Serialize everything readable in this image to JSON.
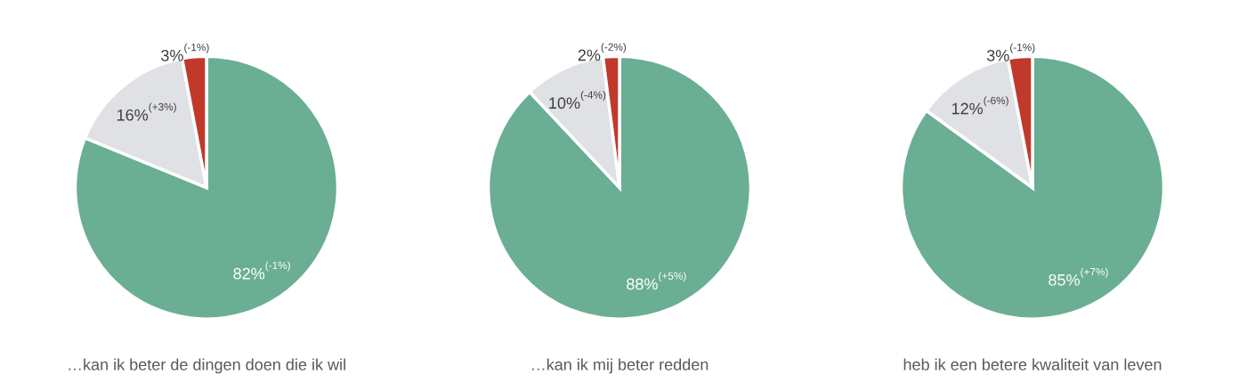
{
  "chart_data": [
    {
      "type": "pie",
      "title": "…kan ik beter de dingen doen die ik wil",
      "categories": [
        null,
        null,
        null
      ],
      "values": [
        82,
        16,
        3
      ],
      "colors": [
        "#6aae94",
        "#dfe1e4",
        "#c0392b"
      ],
      "value_labels": [
        "82%$^{(-1%)}$",
        "16%$^{(+3%)}$",
        "3%$^{(-1%)}$"
      ]
    },
    {
      "type": "pie",
      "title": "…kan ik mij beter redden",
      "categories": [
        null,
        null,
        null
      ],
      "values": [
        88,
        10,
        2
      ],
      "colors": [
        "#6aae94",
        "#dfe1e4",
        "#c0392b"
      ],
      "value_labels": [
        "88%$^{(+5%)}$",
        "10%$^{(-4%)}$",
        "2%$^{(-2%)}$"
      ]
    },
    {
      "type": "pie",
      "title": "heb ik een betere kwaliteit van leven",
      "categories": [
        null,
        null,
        null
      ],
      "values": [
        85,
        12,
        3
      ],
      "colors": [
        "#6aae94",
        "#dfe1e4",
        "#c0392b"
      ],
      "value_labels": [
        "85%$^{(+7%)}$",
        "12%$^{(-6%)}$",
        "3%$^{(-1%)}$"
      ]
    }
  ]
}
